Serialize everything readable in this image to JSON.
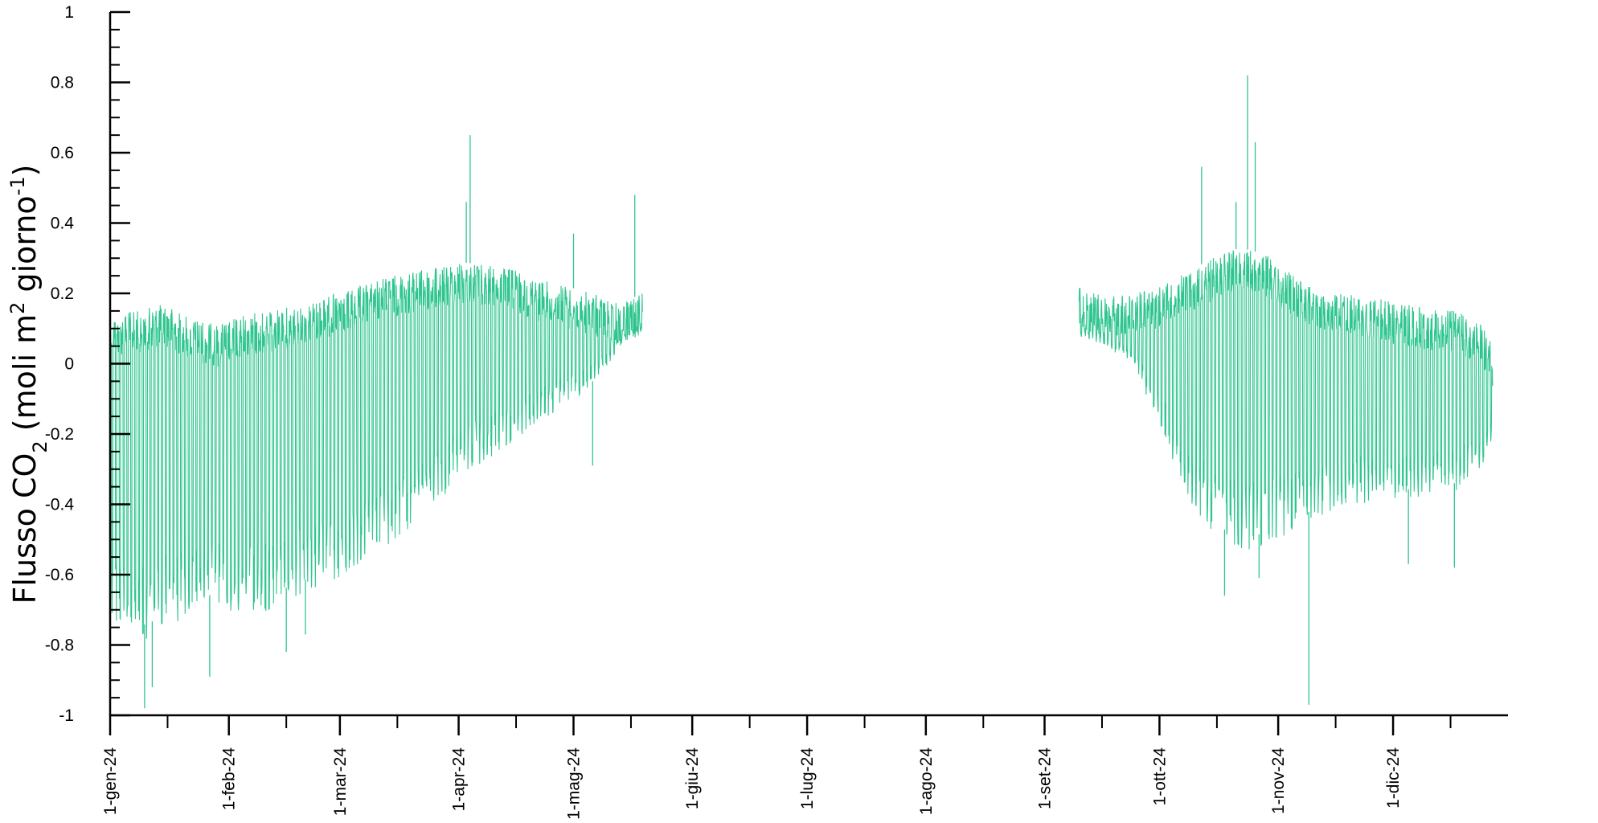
{
  "chart_data": {
    "type": "line",
    "title": "",
    "xlabel": "",
    "ylabel": {
      "prefix": "Flusso CO",
      "sub": "2",
      "middle": " (moli m",
      "sup1": "2",
      "middle2": " giorno",
      "sup2": "-1",
      "suffix": ")"
    },
    "ylim": [
      -1,
      1
    ],
    "yticks": [
      "1",
      "0.8",
      "0.6",
      "0.4",
      "0.2",
      "0",
      "-0.2",
      "-0.4",
      "-0.6",
      "-0.8",
      "-1"
    ],
    "xlim": [
      "2024-01-01",
      "2024-12-31"
    ],
    "xticks": [
      {
        "date": "2024-01-01",
        "label": "1-gen-24"
      },
      {
        "date": "2024-02-01",
        "label": "1-feb-24"
      },
      {
        "date": "2024-03-01",
        "label": "1-mar-24"
      },
      {
        "date": "2024-04-01",
        "label": "1-apr-24"
      },
      {
        "date": "2024-05-01",
        "label": "1-mag-24"
      },
      {
        "date": "2024-06-01",
        "label": "1-giu-24"
      },
      {
        "date": "2024-07-01",
        "label": "1-lug-24"
      },
      {
        "date": "2024-08-01",
        "label": "1-ago-24"
      },
      {
        "date": "2024-09-01",
        "label": "1-set-24"
      },
      {
        "date": "2024-10-01",
        "label": "1-ott-24"
      },
      {
        "date": "2024-11-01",
        "label": "1-nov-24"
      },
      {
        "date": "2024-12-01",
        "label": "1-dic-24"
      }
    ],
    "series_color": "#2ec58e",
    "series": [
      {
        "segment": "gen-mag",
        "start": "2024-01-01",
        "end": "2024-05-19",
        "x": [
          "2024-01-01",
          "2024-01-08",
          "2024-01-15",
          "2024-01-22",
          "2024-01-29",
          "2024-02-05",
          "2024-02-12",
          "2024-02-19",
          "2024-02-26",
          "2024-03-04",
          "2024-03-11",
          "2024-03-18",
          "2024-03-25",
          "2024-04-01",
          "2024-04-08",
          "2024-04-15",
          "2024-04-22",
          "2024-04-29",
          "2024-05-06",
          "2024-05-13",
          "2024-05-19"
        ],
        "daily_max": [
          0.14,
          0.15,
          0.17,
          0.13,
          0.11,
          0.14,
          0.15,
          0.17,
          0.19,
          0.21,
          0.24,
          0.26,
          0.27,
          0.29,
          0.28,
          0.27,
          0.24,
          0.22,
          0.2,
          0.17,
          0.2
        ],
        "daily_min": [
          -0.7,
          -0.75,
          -0.72,
          -0.68,
          -0.65,
          -0.68,
          -0.66,
          -0.62,
          -0.6,
          -0.55,
          -0.5,
          -0.45,
          -0.38,
          -0.3,
          -0.25,
          -0.2,
          -0.15,
          -0.1,
          -0.05,
          0.05,
          0.1
        ],
        "spikes_max": [
          {
            "date": "2024-04-04",
            "value": 0.65
          },
          {
            "date": "2024-05-17",
            "value": 0.48
          },
          {
            "date": "2024-04-03",
            "value": 0.46
          },
          {
            "date": "2024-05-01",
            "value": 0.37
          }
        ],
        "spikes_min": [
          {
            "date": "2024-01-10",
            "value": -0.98
          },
          {
            "date": "2024-01-12",
            "value": -0.92
          },
          {
            "date": "2024-01-27",
            "value": -0.89
          },
          {
            "date": "2024-02-16",
            "value": -0.82
          },
          {
            "date": "2024-02-21",
            "value": -0.77
          },
          {
            "date": "2024-05-06",
            "value": -0.29
          }
        ]
      },
      {
        "segment": "set-dic",
        "start": "2024-09-10",
        "end": "2024-12-27",
        "x": [
          "2024-09-10",
          "2024-09-17",
          "2024-09-24",
          "2024-10-01",
          "2024-10-08",
          "2024-10-15",
          "2024-10-22",
          "2024-10-29",
          "2024-11-05",
          "2024-11-12",
          "2024-11-19",
          "2024-11-26",
          "2024-12-03",
          "2024-12-10",
          "2024-12-17",
          "2024-12-24",
          "2024-12-27"
        ],
        "daily_max": [
          0.22,
          0.19,
          0.2,
          0.22,
          0.26,
          0.3,
          0.33,
          0.31,
          0.25,
          0.22,
          0.2,
          0.19,
          0.17,
          0.16,
          0.15,
          0.12,
          0.05
        ],
        "daily_min": [
          0.08,
          0.06,
          0.0,
          -0.15,
          -0.35,
          -0.45,
          -0.5,
          -0.48,
          -0.45,
          -0.4,
          -0.38,
          -0.37,
          -0.36,
          -0.35,
          -0.34,
          -0.28,
          -0.2
        ],
        "spikes_max": [
          {
            "date": "2024-10-24",
            "value": 0.82
          },
          {
            "date": "2024-10-26",
            "value": 0.63
          },
          {
            "date": "2024-10-12",
            "value": 0.56
          },
          {
            "date": "2024-10-21",
            "value": 0.46
          }
        ],
        "spikes_min": [
          {
            "date": "2024-11-09",
            "value": -0.97
          },
          {
            "date": "2024-10-18",
            "value": -0.66
          },
          {
            "date": "2024-10-27",
            "value": -0.61
          },
          {
            "date": "2024-12-05",
            "value": -0.57
          },
          {
            "date": "2024-12-17",
            "value": -0.58
          }
        ]
      }
    ],
    "grid": false,
    "legend": "none"
  }
}
